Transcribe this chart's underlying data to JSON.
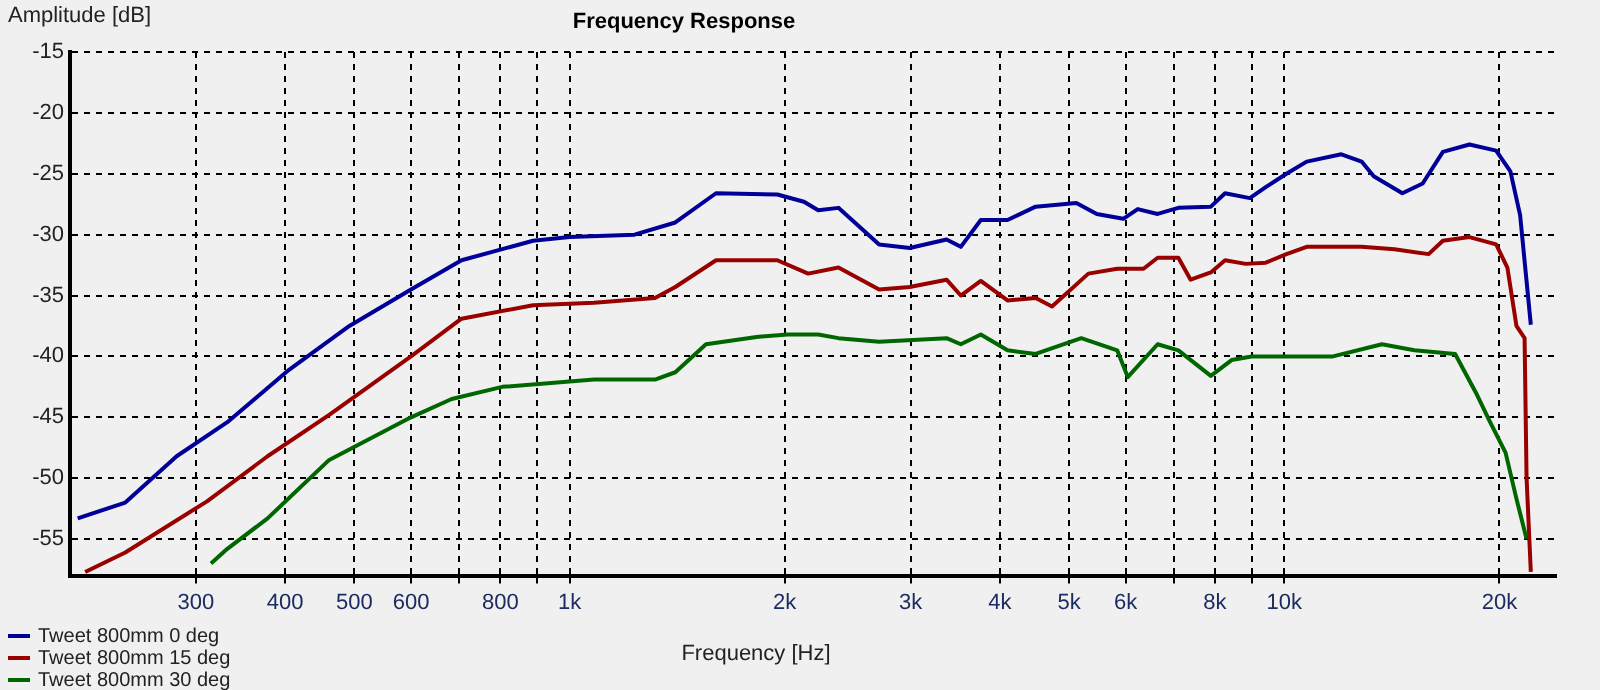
{
  "chart_data": {
    "type": "line",
    "title": "Frequency Response",
    "xlabel": "Frequency [Hz]",
    "ylabel": "Amplitude [dB]",
    "log": "x",
    "grid": true,
    "legend": "bottom left",
    "xlim": [
      200,
      24000
    ],
    "xticks": [
      {
        "value": 300,
        "label": "300"
      },
      {
        "value": 400,
        "label": "400"
      },
      {
        "value": 500,
        "label": "500"
      },
      {
        "value": 600,
        "label": "600"
      },
      {
        "value": 700,
        "label": null
      },
      {
        "value": 800,
        "label": "800"
      },
      {
        "value": 900,
        "label": null
      },
      {
        "value": 1000,
        "label": "1k"
      },
      {
        "value": 2000,
        "label": "2k"
      },
      {
        "value": 3000,
        "label": "3k"
      },
      {
        "value": 4000,
        "label": "4k"
      },
      {
        "value": 5000,
        "label": "5k"
      },
      {
        "value": 6000,
        "label": "6k"
      },
      {
        "value": 7000,
        "label": null
      },
      {
        "value": 8000,
        "label": "8k"
      },
      {
        "value": 9000,
        "label": null
      },
      {
        "value": 10000,
        "label": "10k"
      },
      {
        "value": 20000,
        "label": "20k"
      }
    ],
    "ylim": [
      -58,
      -15
    ],
    "yticks": [
      -15,
      -20,
      -25,
      -30,
      -35,
      -40,
      -45,
      -50,
      -55
    ],
    "series": [
      {
        "name": "Tweet 800mm 0 deg",
        "color": "#000099",
        "x": [
          205,
          239,
          282,
          332,
          405,
          492,
          600,
          706,
          889,
          1000,
          1233,
          1406,
          1603,
          1953,
          2128,
          2228,
          2378,
          2711,
          2992,
          3369,
          3527,
          3762,
          4100,
          4489,
          5118,
          5466,
          5953,
          6237,
          6650,
          7110,
          7893,
          8264,
          8950,
          9420,
          10070,
          10750,
          12020,
          12830,
          13340,
          14630,
          15620,
          16670,
          18160,
          19790,
          20720,
          21380,
          22130
        ],
        "values": [
          -53.3,
          -52,
          -48.2,
          -45.4,
          -41.1,
          -37.5,
          -34.5,
          -32.1,
          -30.5,
          -30.2,
          -30,
          -29,
          -26.6,
          -26.7,
          -27.3,
          -28,
          -27.8,
          -30.8,
          -31.1,
          -30.4,
          -31,
          -28.8,
          -28.8,
          -27.7,
          -27.4,
          -28.3,
          -28.7,
          -27.9,
          -28.3,
          -27.8,
          -27.7,
          -26.6,
          -27,
          -26.1,
          -25,
          -24,
          -23.4,
          -24,
          -25.2,
          -26.6,
          -25.8,
          -23.2,
          -22.6,
          -23.1,
          -24.8,
          -28.4,
          -37.4
        ]
      },
      {
        "name": "Tweet 800mm 15 deg",
        "color": "#990000",
        "x": [
          210,
          239,
          311,
          378,
          461,
          600,
          706,
          889,
          1082,
          1317,
          1406,
          1603,
          1953,
          2157,
          2378,
          2711,
          2992,
          3369,
          3527,
          3762,
          4100,
          4489,
          4732,
          5320,
          5838,
          6355,
          6650,
          7110,
          7396,
          7893,
          8264,
          8833,
          9420,
          10070,
          10750,
          12830,
          14260,
          15920,
          16670,
          18160,
          19790,
          20520,
          21130,
          21690,
          21830,
          22130
        ],
        "values": [
          -57.7,
          -56.1,
          -51.9,
          -48.2,
          -44.8,
          -40,
          -36.9,
          -35.8,
          -35.6,
          -35.2,
          -34.3,
          -32.1,
          -32.1,
          -33.2,
          -32.7,
          -34.5,
          -34.3,
          -33.7,
          -35,
          -33.8,
          -35.4,
          -35.2,
          -35.9,
          -33.2,
          -32.8,
          -32.8,
          -31.9,
          -31.9,
          -33.7,
          -33.1,
          -32.1,
          -32.4,
          -32.3,
          -31.6,
          -31,
          -31,
          -31.2,
          -31.6,
          -30.5,
          -30.2,
          -30.8,
          -32.7,
          -37.5,
          -38.5,
          -50,
          -57.7
        ]
      },
      {
        "name": "Tweet 800mm 30 deg",
        "color": "#006600",
        "x": [
          315,
          332,
          378,
          461,
          600,
          684,
          805,
          1082,
          1317,
          1406,
          1552,
          1827,
          2018,
          2228,
          2378,
          2711,
          3369,
          3527,
          3762,
          4100,
          4489,
          5200,
          5838,
          6040,
          6650,
          7110,
          7893,
          8440,
          9000,
          10230,
          11700,
          13700,
          15210,
          17340,
          18550,
          19410,
          20400,
          21130,
          21830
        ],
        "values": [
          -57,
          -55.8,
          -53.3,
          -48.5,
          -45,
          -43.5,
          -42.5,
          -41.9,
          -41.9,
          -41.3,
          -39,
          -38.4,
          -38.2,
          -38.2,
          -38.5,
          -38.8,
          -38.5,
          -39,
          -38.2,
          -39.5,
          -39.8,
          -38.5,
          -39.5,
          -41.7,
          -39,
          -39.5,
          -41.6,
          -40.3,
          -40,
          -40,
          -40,
          -39,
          -39.5,
          -39.8,
          -43,
          -45.4,
          -47.9,
          -51.7,
          -55
        ]
      }
    ]
  }
}
